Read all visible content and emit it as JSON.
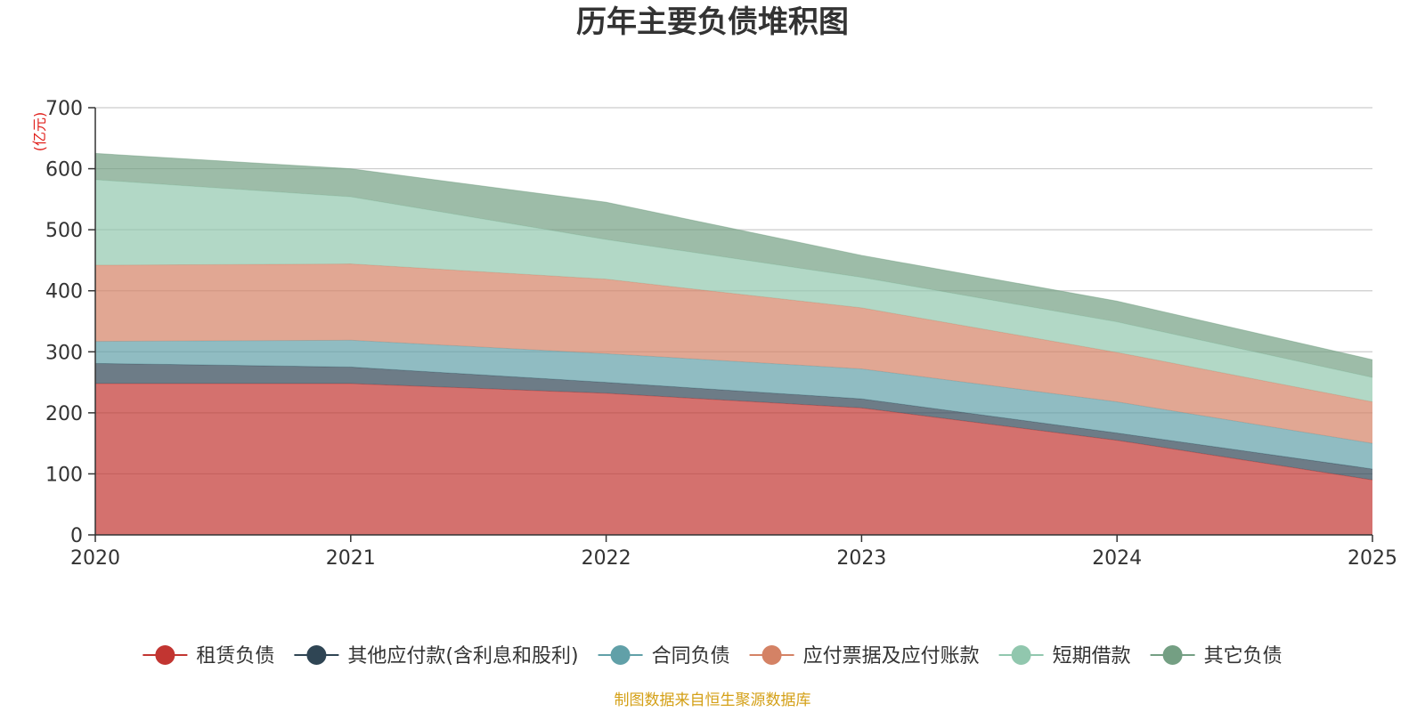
{
  "chart_data": {
    "type": "area",
    "stacked": true,
    "title": "历年主要负债堆积图",
    "unit_label": "(亿元)",
    "x": [
      "2020",
      "2021",
      "2022",
      "2023",
      "2024",
      "2025"
    ],
    "ylim": [
      0,
      700
    ],
    "yticks": [
      "0",
      "100",
      "200",
      "300",
      "400",
      "500",
      "600",
      "700"
    ],
    "grid": true,
    "legend_position": "bottom",
    "series": [
      {
        "name": "租赁负债",
        "color": "#c23531",
        "values": [
          248,
          248,
          232,
          208,
          155,
          90
        ]
      },
      {
        "name": "其他应付款(含利息和股利)",
        "color": "#2f4554",
        "values": [
          33,
          27,
          18,
          15,
          12,
          18
        ]
      },
      {
        "name": "合同负债",
        "color": "#61a0a8",
        "values": [
          36,
          44,
          47,
          49,
          51,
          42
        ]
      },
      {
        "name": "应付票据及应付账款",
        "color": "#d48265",
        "values": [
          125,
          125,
          122,
          100,
          81,
          68
        ]
      },
      {
        "name": "短期借款",
        "color": "#91c7ae",
        "values": [
          140,
          110,
          65,
          50,
          50,
          40
        ]
      },
      {
        "name": "其它负债",
        "color": "#749f83",
        "values": [
          43,
          46,
          61,
          36,
          34,
          29
        ]
      }
    ],
    "source": "制图数据来自恒生聚源数据库",
    "source_color": "#d4a017",
    "unit_color": "#e0201c"
  }
}
